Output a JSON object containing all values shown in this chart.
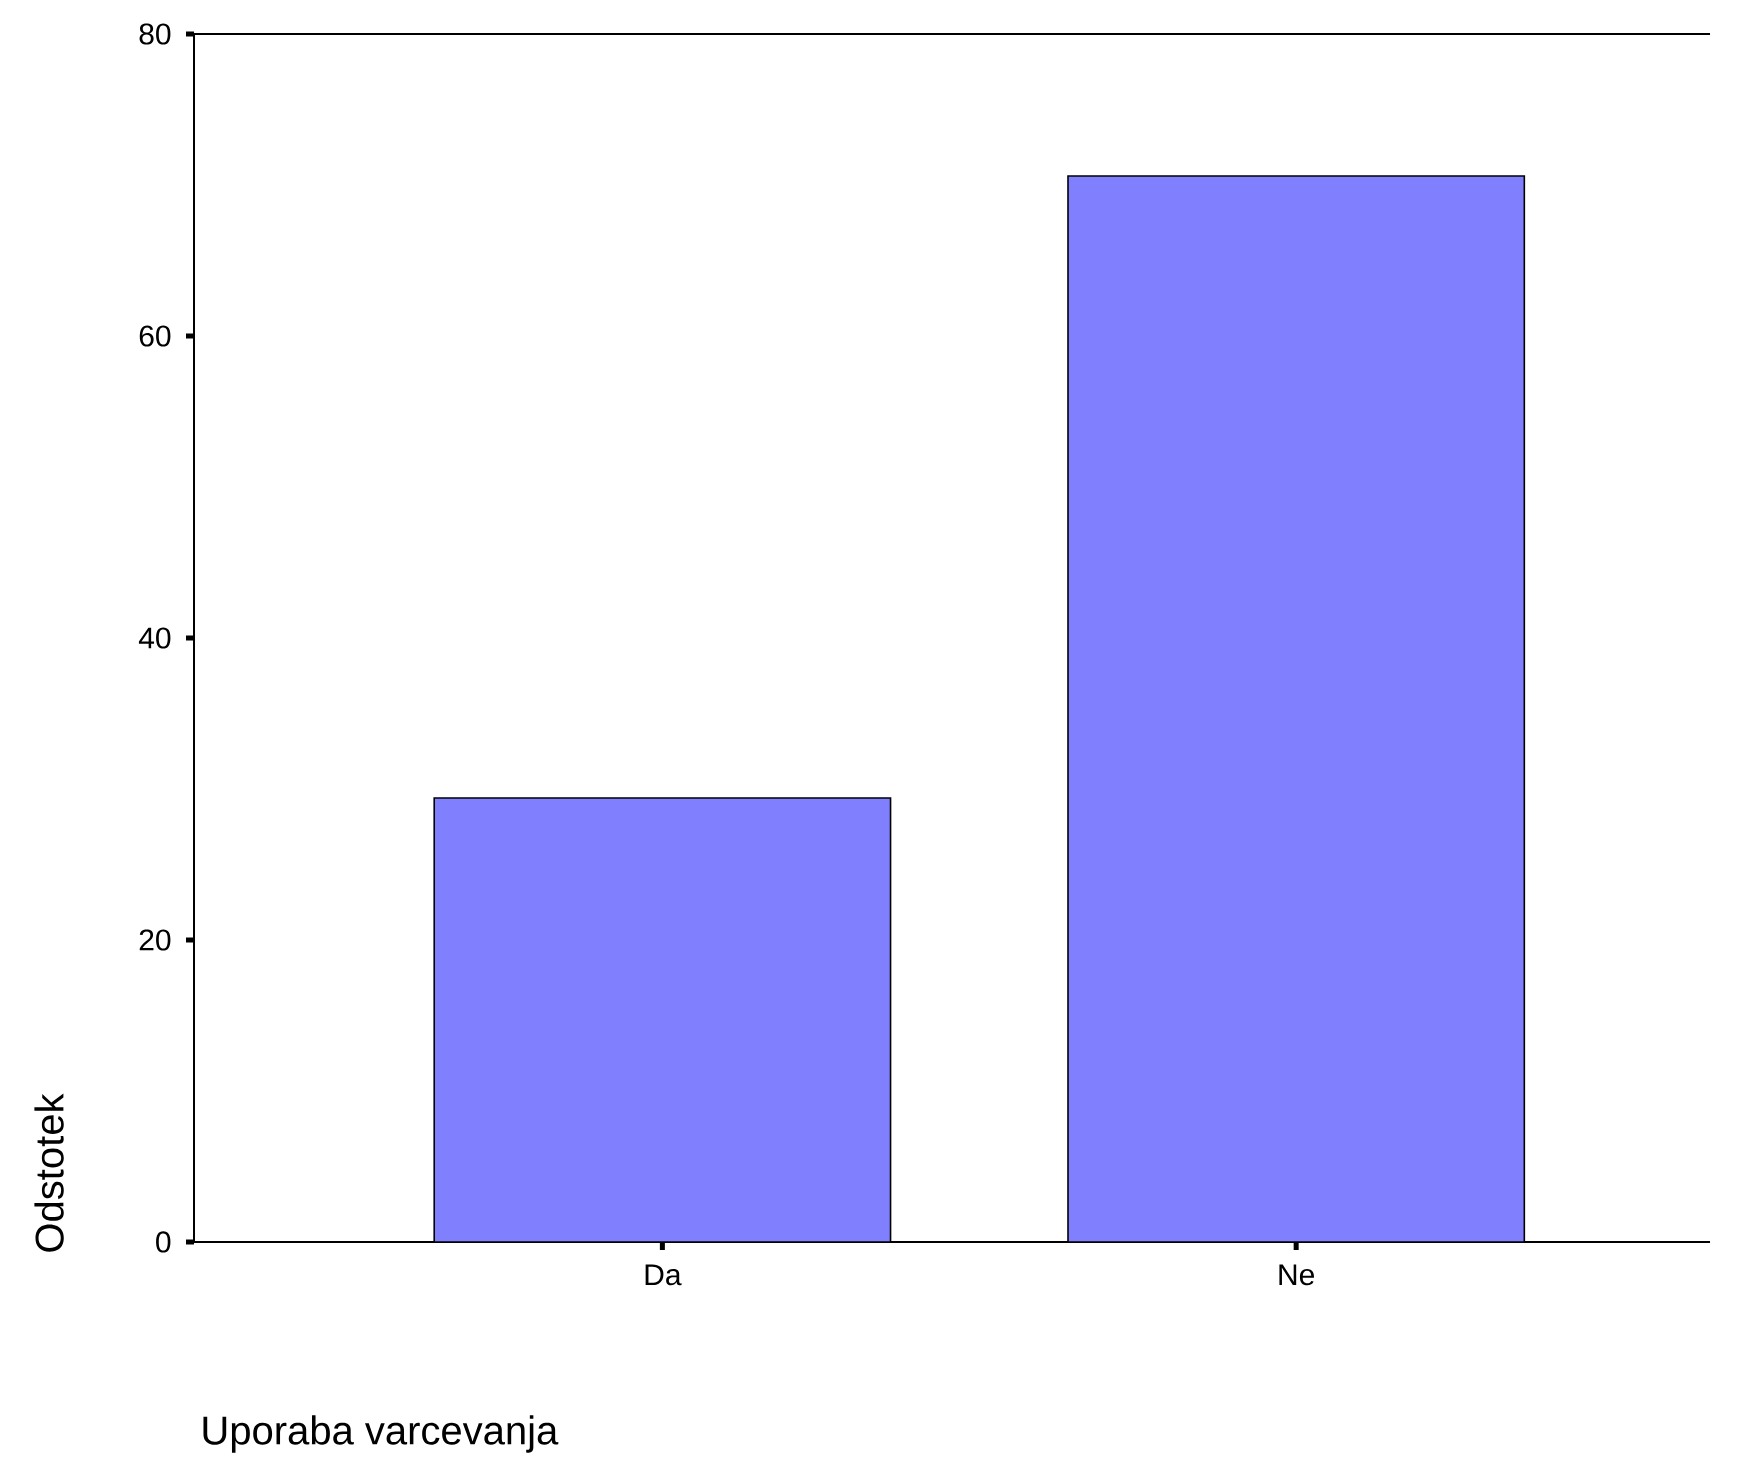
{
  "chart_data": {
    "type": "bar",
    "xlabel": "Uporaba varcevanja",
    "ylabel": "Odstotek",
    "categories": [
      "Da",
      "Ne"
    ],
    "values": [
      29.4,
      70.6
    ],
    "color": "#8080ff",
    "ylim": [
      0,
      80
    ],
    "yticks": [
      0,
      20,
      40,
      60,
      80
    ],
    "grid": false
  }
}
